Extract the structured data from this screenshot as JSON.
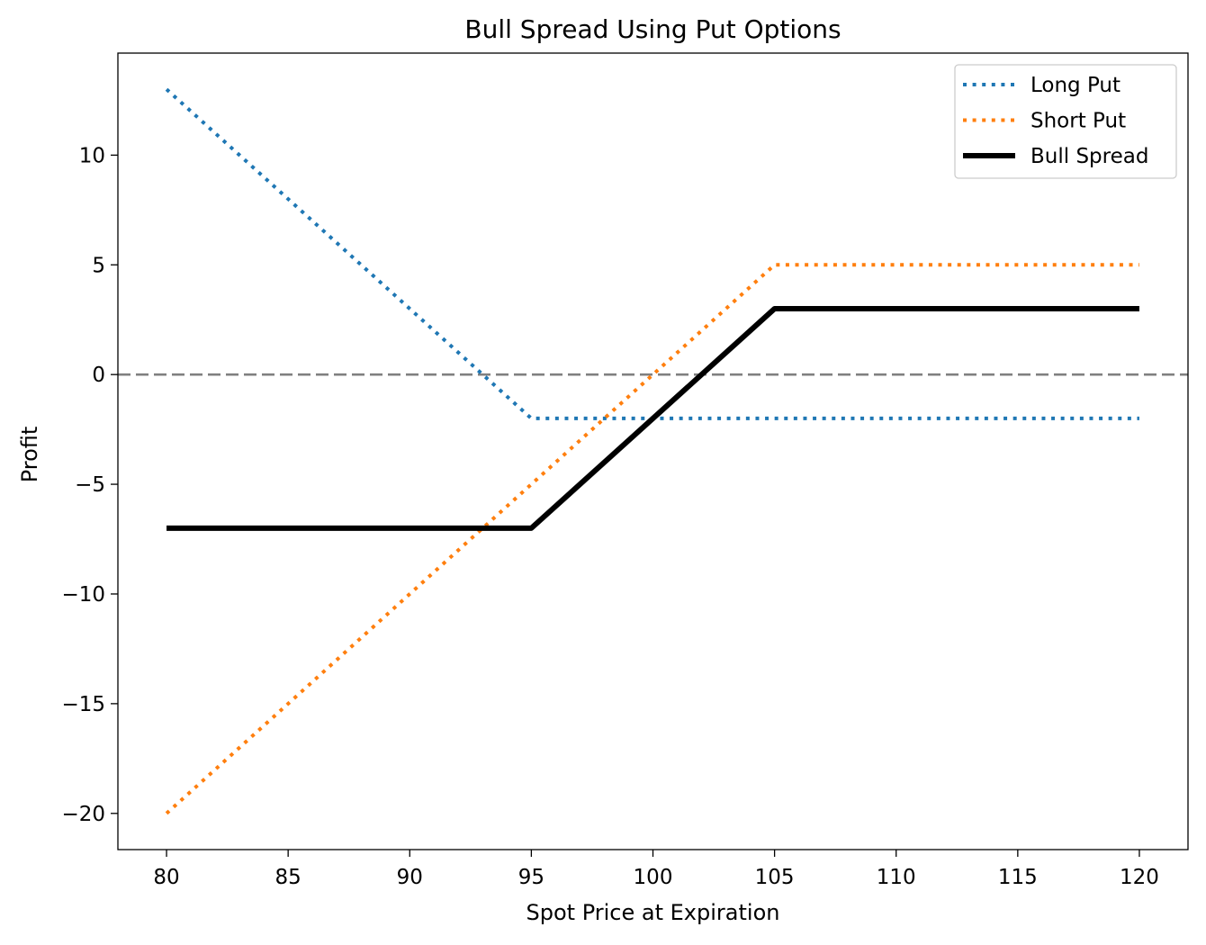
{
  "chart_data": {
    "type": "line",
    "title": "Bull Spread Using Put Options",
    "xlabel": "Spot Price at Expiration",
    "ylabel": "Profit",
    "xlim": [
      78,
      122
    ],
    "ylim": [
      -21.65,
      14.65
    ],
    "xticks": [
      80,
      85,
      90,
      95,
      100,
      105,
      110,
      115,
      120
    ],
    "xtick_labels": [
      "80",
      "85",
      "90",
      "95",
      "100",
      "105",
      "110",
      "115",
      "120"
    ],
    "yticks": [
      10,
      5,
      0,
      -5,
      -10,
      -15,
      -20
    ],
    "ytick_labels": [
      "10",
      "5",
      "0",
      "−5",
      "−10",
      "−15",
      "−20"
    ],
    "grid": false,
    "legend_position": "top-right",
    "reference_line": {
      "y": 0,
      "color": "#808080",
      "style": "dashed"
    },
    "series": [
      {
        "name": "Long Put",
        "color": "#1f77b4",
        "style": "dotted",
        "x": [
          80,
          95,
          120
        ],
        "y": [
          13,
          -2,
          -2
        ]
      },
      {
        "name": "Short Put",
        "color": "#ff7f0e",
        "style": "dotted",
        "x": [
          80,
          105,
          120
        ],
        "y": [
          -20,
          5,
          5
        ]
      },
      {
        "name": "Bull Spread",
        "color": "#000000",
        "style": "solid",
        "x": [
          80,
          95,
          105,
          120
        ],
        "y": [
          -7,
          -7,
          3,
          3
        ]
      }
    ]
  }
}
